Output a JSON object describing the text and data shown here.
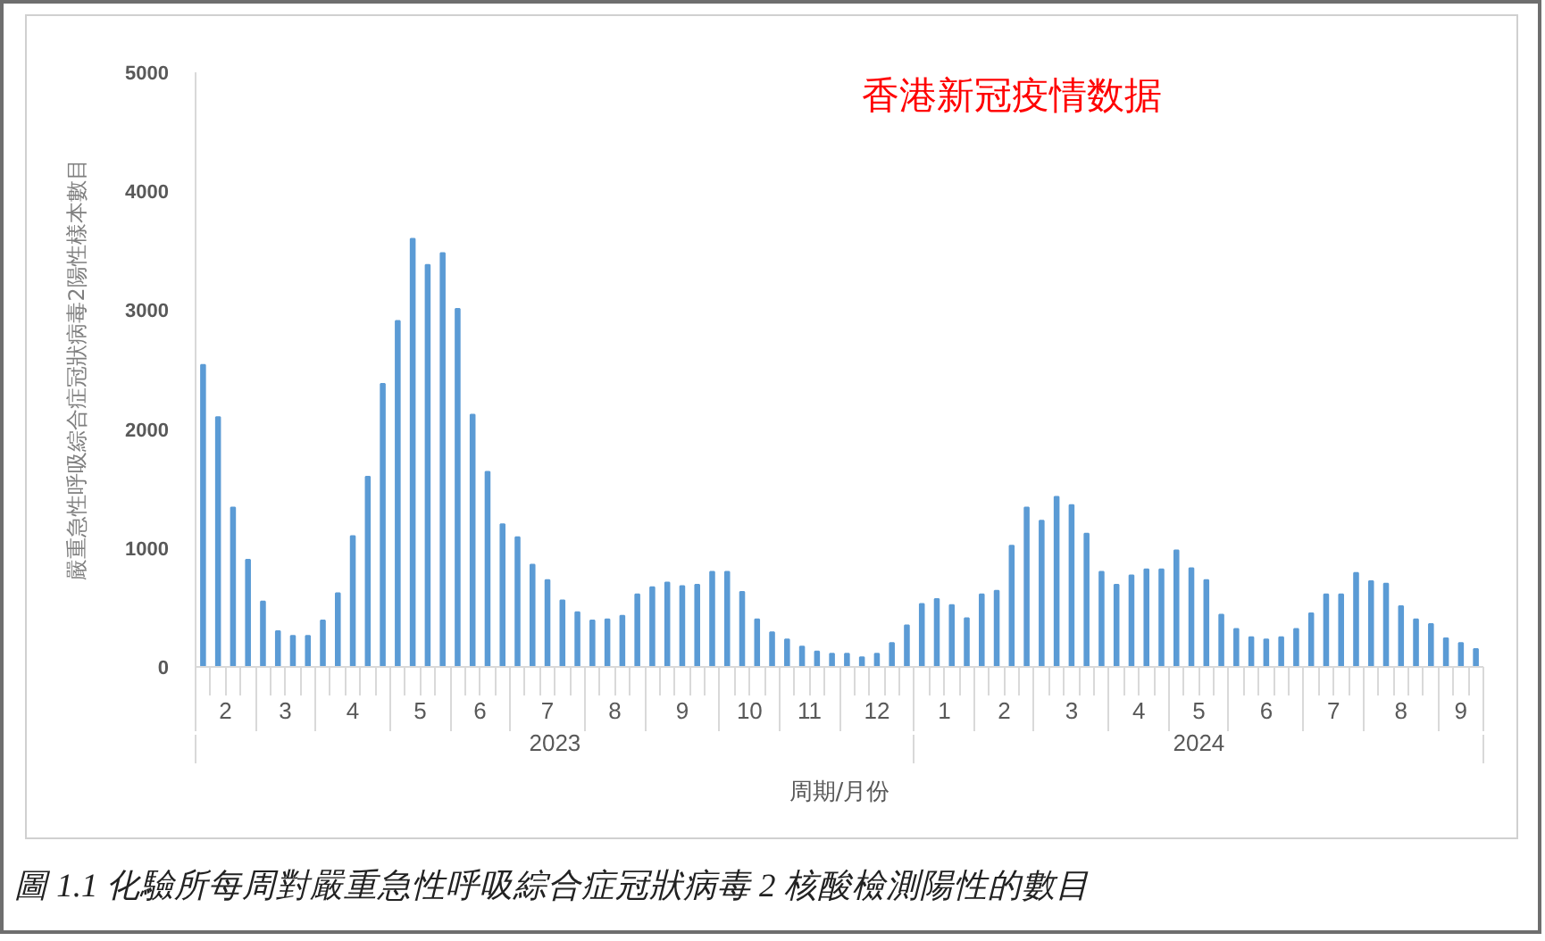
{
  "chart_data": {
    "type": "bar",
    "title": "香港新冠疫情数据",
    "xlabel": "周期/月份",
    "ylabel": "嚴重急性呼吸綜合症冠狀病毒2陽性樣本數目",
    "x": [
      "2023-02-04",
      "2023-02-11",
      "2023-02-18",
      "2023-02-25",
      "2023-03-04",
      "2023-03-11",
      "2023-03-18",
      "2023-03-25",
      "2023-04-01",
      "2023-04-08",
      "2023-04-15",
      "2023-04-22",
      "2023-04-29",
      "2023-05-06",
      "2023-05-13",
      "2023-05-20",
      "2023-05-27",
      "2023-06-03",
      "2023-06-10",
      "2023-06-17",
      "2023-06-24",
      "2023-07-01",
      "2023-07-08",
      "2023-07-15",
      "2023-07-22",
      "2023-07-29",
      "2023-08-05",
      "2023-08-12",
      "2023-08-19",
      "2023-08-26",
      "2023-09-02",
      "2023-09-09",
      "2023-09-16",
      "2023-09-23",
      "2023-09-30",
      "2023-10-07",
      "2023-10-14",
      "2023-10-21",
      "2023-10-28",
      "2023-11-04",
      "2023-11-11",
      "2023-11-18",
      "2023-11-25",
      "2023-12-02",
      "2023-12-09",
      "2023-12-16",
      "2023-12-23",
      "2023-12-30",
      "2024-01-06",
      "2024-01-13",
      "2024-01-20",
      "2024-01-27",
      "2024-02-03",
      "2024-02-10",
      "2024-02-17",
      "2024-02-24",
      "2024-03-02",
      "2024-03-09",
      "2024-03-16",
      "2024-03-23",
      "2024-03-30",
      "2024-04-06",
      "2024-04-13",
      "2024-04-20",
      "2024-04-27",
      "2024-05-04",
      "2024-05-11",
      "2024-05-18",
      "2024-05-25",
      "2024-06-01",
      "2024-06-08",
      "2024-06-15",
      "2024-06-22",
      "2024-06-29",
      "2024-07-06",
      "2024-07-13",
      "2024-07-20",
      "2024-07-27",
      "2024-08-03",
      "2024-08-10",
      "2024-08-17",
      "2024-08-24",
      "2024-08-31",
      "2024-09-07",
      "2024-09-14",
      "2024-09-21"
    ],
    "values": [
      2540,
      2100,
      1340,
      900,
      550,
      300,
      260,
      260,
      390,
      620,
      1100,
      1600,
      2380,
      2910,
      3600,
      3380,
      3480,
      3010,
      2120,
      1640,
      1200,
      1090,
      860,
      730,
      560,
      460,
      390,
      400,
      430,
      610,
      670,
      710,
      680,
      690,
      800,
      800,
      630,
      400,
      290,
      230,
      170,
      130,
      110,
      110,
      80,
      110,
      200,
      350,
      530,
      570,
      520,
      410,
      610,
      640,
      1020,
      1340,
      1230,
      1430,
      1360,
      1120,
      800,
      690,
      770,
      820,
      820,
      980,
      830,
      730,
      440,
      320,
      250,
      230,
      250,
      320,
      450,
      610,
      610,
      790,
      720,
      700,
      510,
      400,
      360,
      240,
      200,
      150
    ],
    "color": "#5b9bd5",
    "xlim": [
      "2023-01-31T12:00",
      "2024-09-24T12:00"
    ],
    "xticks": [
      {
        "value": "2023-01-31T12:00",
        "label": null
      },
      {
        "value": "2023-02-14T12:00",
        "label": "2"
      },
      {
        "value": "2023-02-28T12:00",
        "label": null
      },
      {
        "value": "2023-03-14T12:00",
        "label": "3"
      },
      {
        "value": "2023-03-28T12:00",
        "label": null
      },
      {
        "value": "2023-04-15",
        "label": "4"
      },
      {
        "value": "2023-05-02T12:00",
        "label": null
      },
      {
        "value": "2023-05-16T12:00",
        "label": "5"
      },
      {
        "value": "2023-05-30T12:00",
        "label": null
      },
      {
        "value": "2023-06-13T12:00",
        "label": "6"
      },
      {
        "value": "2023-06-27T12:00",
        "label": null
      },
      {
        "value": "2023-07-15",
        "label": "7"
      },
      {
        "value": "2023-08-01T12:00",
        "label": null
      },
      {
        "value": "2023-08-15T12:00",
        "label": "8"
      },
      {
        "value": "2023-08-29T12:00",
        "label": null
      },
      {
        "value": "2023-09-16",
        "label": "9"
      },
      {
        "value": "2023-10-03T12:00",
        "label": null
      },
      {
        "value": "2023-10-17T12:00",
        "label": "10"
      },
      {
        "value": "2023-10-31T12:00",
        "label": null
      },
      {
        "value": "2023-11-14T12:00",
        "label": "11"
      },
      {
        "value": "2023-11-28T12:00",
        "label": null
      },
      {
        "value": "2023-12-16",
        "label": "12"
      },
      {
        "value": "2024-01-02T12:00",
        "label": null
      },
      {
        "value": "2024-01-16T12:00",
        "label": "1"
      },
      {
        "value": "2024-01-30T12:00",
        "label": null
      },
      {
        "value": "2024-02-13T12:00",
        "label": "2"
      },
      {
        "value": "2024-02-27T12:00",
        "label": null
      },
      {
        "value": "2024-03-16",
        "label": "3"
      },
      {
        "value": "2024-04-02T12:00",
        "label": null
      },
      {
        "value": "2024-04-16T12:00",
        "label": "4"
      },
      {
        "value": "2024-04-30T12:00",
        "label": null
      },
      {
        "value": "2024-05-14T12:00",
        "label": "5"
      },
      {
        "value": "2024-05-28T12:00",
        "label": null
      },
      {
        "value": "2024-06-15",
        "label": "6"
      },
      {
        "value": "2024-07-02T12:00",
        "label": null
      },
      {
        "value": "2024-07-16T12:00",
        "label": "7"
      },
      {
        "value": "2024-07-30T12:00",
        "label": null
      },
      {
        "value": "2024-08-17",
        "label": "8"
      },
      {
        "value": "2024-09-03T12:00",
        "label": null
      },
      {
        "value": "2024-09-14",
        "label": "9"
      },
      {
        "value": "2024-09-24T12:00",
        "label": null
      }
    ],
    "ylim": [
      0,
      5000
    ],
    "yticks": [
      0,
      1000,
      2000,
      3000,
      4000,
      5000
    ],
    "annotations": [
      "2023",
      "2024",
      "圖 1.1 化驗所每周對嚴重急性呼吸綜合症冠狀病毒 2 核酸檢測陽性的數目"
    ]
  }
}
